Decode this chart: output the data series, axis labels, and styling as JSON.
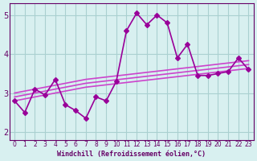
{
  "x": [
    0,
    1,
    2,
    3,
    4,
    5,
    6,
    7,
    8,
    9,
    10,
    11,
    12,
    13,
    14,
    15,
    16,
    17,
    18,
    19,
    20,
    21,
    22,
    23
  ],
  "y_main": [
    2.8,
    2.5,
    3.1,
    2.95,
    3.35,
    2.7,
    2.55,
    2.35,
    2.9,
    2.8,
    3.3,
    4.6,
    5.05,
    4.75,
    5.0,
    4.8,
    3.9,
    4.25,
    3.45,
    3.45,
    3.5,
    3.55,
    3.9,
    3.6
  ],
  "y_reg_upper": [
    3.0,
    3.05,
    3.1,
    3.15,
    3.2,
    3.25,
    3.3,
    3.35,
    3.38,
    3.41,
    3.44,
    3.47,
    3.5,
    3.53,
    3.56,
    3.59,
    3.62,
    3.65,
    3.68,
    3.71,
    3.74,
    3.77,
    3.8,
    3.83
  ],
  "y_reg_mid": [
    2.9,
    2.95,
    3.0,
    3.05,
    3.1,
    3.15,
    3.2,
    3.25,
    3.28,
    3.31,
    3.34,
    3.37,
    3.4,
    3.43,
    3.46,
    3.49,
    3.52,
    3.55,
    3.58,
    3.61,
    3.64,
    3.67,
    3.7,
    3.73
  ],
  "y_reg_lower": [
    2.8,
    2.85,
    2.9,
    2.95,
    3.0,
    3.05,
    3.1,
    3.15,
    3.18,
    3.21,
    3.24,
    3.27,
    3.3,
    3.33,
    3.36,
    3.39,
    3.42,
    3.45,
    3.48,
    3.51,
    3.54,
    3.57,
    3.6,
    3.63
  ],
  "line_color": "#990099",
  "reg_color": "#cc44cc",
  "bg_color": "#d8f0f0",
  "grid_color": "#aad0d0",
  "tick_color": "#660066",
  "xlabel": "Windchill (Refroidissement éolien,°C)",
  "ylim": [
    1.8,
    5.3
  ],
  "xlim": [
    -0.5,
    23.5
  ],
  "yticks": [
    2,
    3,
    4,
    5
  ],
  "xtick_labels": [
    "0",
    "1",
    "2",
    "3",
    "4",
    "5",
    "6",
    "7",
    "8",
    "9",
    "10",
    "11",
    "12",
    "13",
    "14",
    "15",
    "16",
    "17",
    "18",
    "19",
    "20",
    "21",
    "22",
    "23"
  ],
  "marker": "D",
  "markersize": 3,
  "linewidth": 1.2
}
